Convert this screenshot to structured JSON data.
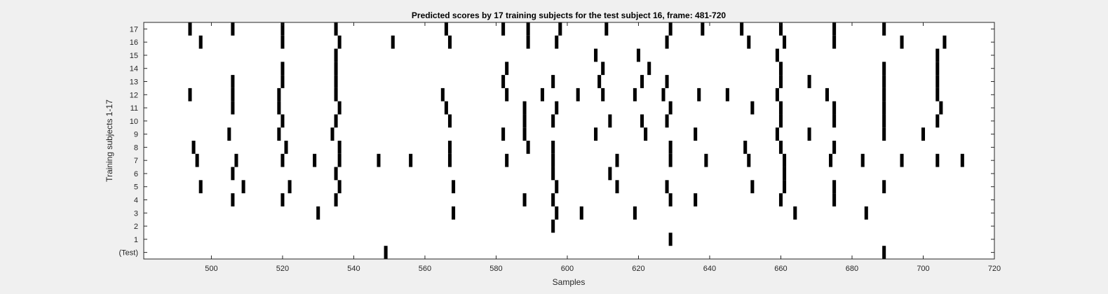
{
  "chart_data": {
    "type": "raster",
    "title": "Predicted scores by 17 training subjects for the test subject 16, frame: 481-720",
    "xlabel": "Samples",
    "ylabel": "Training subjects 1-17",
    "xlim": [
      481,
      720
    ],
    "xticks": [
      500,
      520,
      540,
      560,
      580,
      600,
      620,
      640,
      660,
      680,
      700,
      720
    ],
    "rows": [
      "(Test)",
      "1",
      "2",
      "3",
      "4",
      "5",
      "6",
      "7",
      "8",
      "9",
      "10",
      "11",
      "12",
      "13",
      "14",
      "15",
      "16",
      "17"
    ],
    "mark_color": "#000000",
    "events": {
      "(Test)": [
        549,
        689
      ],
      "1": [
        629
      ],
      "2": [
        596
      ],
      "3": [
        530,
        568,
        597,
        604,
        619,
        664,
        684
      ],
      "4": [
        506,
        520,
        535,
        588,
        596,
        629,
        636,
        660,
        675
      ],
      "5": [
        497,
        509,
        522,
        536,
        568,
        597,
        614,
        628,
        652,
        661,
        675,
        689
      ],
      "6": [
        506,
        535,
        596,
        612,
        661
      ],
      "7": [
        496,
        507,
        520,
        529,
        536,
        547,
        556,
        567,
        583,
        596,
        614,
        629,
        639,
        651,
        661,
        674,
        683,
        694,
        704,
        711
      ],
      "8": [
        495,
        521,
        536,
        567,
        589,
        596,
        629,
        650,
        660,
        675
      ],
      "9": [
        505,
        519,
        534,
        582,
        588,
        608,
        622,
        636,
        659,
        668,
        689,
        700
      ],
      "10": [
        520,
        535,
        567,
        588,
        596,
        612,
        621,
        628,
        660,
        675,
        689,
        704
      ],
      "11": [
        506,
        519,
        536,
        566,
        588,
        597,
        629,
        652,
        660,
        675,
        689,
        705
      ],
      "12": [
        494,
        506,
        519,
        535,
        565,
        583,
        593,
        603,
        610,
        619,
        627,
        637,
        645,
        659,
        673,
        689,
        704
      ],
      "13": [
        506,
        520,
        535,
        582,
        596,
        609,
        621,
        628,
        660,
        668,
        689,
        704
      ],
      "14": [
        520,
        535,
        583,
        610,
        623,
        660,
        689,
        704
      ],
      "15": [
        535,
        608,
        620,
        659,
        704
      ],
      "16": [
        497,
        520,
        536,
        551,
        567,
        589,
        597,
        628,
        651,
        661,
        675,
        694,
        706
      ],
      "17": [
        494,
        506,
        520,
        535,
        566,
        582,
        589,
        598,
        611,
        629,
        638,
        649,
        660,
        675,
        689
      ]
    }
  }
}
